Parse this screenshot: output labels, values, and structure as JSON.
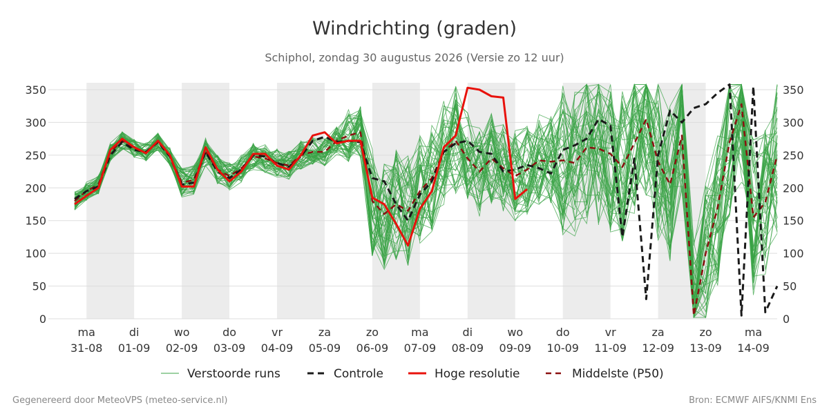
{
  "title": "Windrichting (graden)",
  "subtitle": "Schiphol, zondag 30 augustus 2026 (Versie zo 12 uur)",
  "footer_left": "Gegenereerd door MeteoVPS (meteo-service.nl)",
  "footer_right": "Bron: ECMWF AIFS/KNMI Ens",
  "colors": {
    "ensemble": "#3aa346",
    "control": "#1a1a1a",
    "high_res": "#e8120c",
    "median": "#8b1010",
    "weekend_band": "#ececec",
    "grid": "#dddddd",
    "text": "#333333",
    "muted": "#888888"
  },
  "chart_data": {
    "type": "line",
    "title": "Windrichting (graden)",
    "ylim": [
      0,
      360
    ],
    "yticks": [
      0,
      50,
      100,
      150,
      200,
      250,
      300,
      350
    ],
    "xlim": [
      -0.25,
      14.5
    ],
    "grid": true,
    "legend_position": "bottom",
    "x_ticks": [
      {
        "day": "ma",
        "date": "31-08"
      },
      {
        "day": "di",
        "date": "01-09"
      },
      {
        "day": "wo",
        "date": "02-09"
      },
      {
        "day": "do",
        "date": "03-09"
      },
      {
        "day": "vr",
        "date": "04-09"
      },
      {
        "day": "za",
        "date": "05-09"
      },
      {
        "day": "zo",
        "date": "06-09"
      },
      {
        "day": "ma",
        "date": "07-09"
      },
      {
        "day": "di",
        "date": "08-09"
      },
      {
        "day": "wo",
        "date": "09-09"
      },
      {
        "day": "do",
        "date": "10-09"
      },
      {
        "day": "vr",
        "date": "11-09"
      },
      {
        "day": "za",
        "date": "12-09"
      },
      {
        "day": "zo",
        "date": "13-09"
      },
      {
        "day": "ma",
        "date": "14-09"
      }
    ],
    "shaded_days": [
      0,
      2,
      4,
      6,
      8,
      10,
      12
    ],
    "legend": [
      {
        "label": "Verstoorde runs",
        "style": "ensemble"
      },
      {
        "label": "Controle",
        "style": "control"
      },
      {
        "label": "Hoge resolutie",
        "style": "high_res"
      },
      {
        "label": "Middelste (P50)",
        "style": "median"
      }
    ],
    "ensemble": {
      "name": "Verstoorde runs",
      "members": 50,
      "seed": 7
    },
    "series": [
      {
        "name": "Hoge resolutie",
        "style": "high_res",
        "x": [
          -0.25,
          0,
          0.25,
          0.5,
          0.75,
          1,
          1.25,
          1.5,
          1.75,
          2,
          2.25,
          2.5,
          2.75,
          3,
          3.25,
          3.5,
          3.75,
          4,
          4.25,
          4.5,
          4.75,
          5,
          5.25,
          5.5,
          5.75,
          6,
          6.25,
          6.5,
          6.75,
          7,
          7.25,
          7.5,
          7.75,
          8,
          8.25,
          8.5,
          8.75,
          9,
          9.25
        ],
        "y": [
          175,
          188,
          200,
          258,
          275,
          262,
          253,
          272,
          250,
          202,
          202,
          262,
          228,
          210,
          225,
          252,
          252,
          234,
          228,
          250,
          280,
          285,
          268,
          272,
          272,
          185,
          175,
          145,
          112,
          168,
          195,
          262,
          280,
          353,
          350,
          340,
          338,
          183,
          198
        ]
      },
      {
        "name": "Controle",
        "style": "control",
        "x": [
          -0.25,
          0,
          0.25,
          0.5,
          0.75,
          1,
          1.25,
          1.5,
          1.75,
          2,
          2.25,
          2.5,
          2.75,
          3,
          3.25,
          3.5,
          3.75,
          4,
          4.25,
          4.5,
          4.75,
          5,
          5.25,
          5.5,
          5.75,
          6,
          6.25,
          6.5,
          6.75,
          7,
          7.25,
          7.5,
          7.75,
          8,
          8.25,
          8.5,
          8.75,
          9,
          9.25,
          9.5,
          9.75,
          10,
          10.25,
          10.5,
          10.75,
          11,
          11.25,
          11.5,
          11.75,
          12,
          12.25,
          12.5,
          12.75,
          13,
          13.25,
          13.5,
          13.75,
          14,
          14.25,
          14.5
        ],
        "y": [
          183,
          195,
          202,
          250,
          270,
          258,
          255,
          270,
          248,
          205,
          208,
          255,
          225,
          215,
          228,
          250,
          248,
          238,
          232,
          248,
          272,
          278,
          270,
          272,
          270,
          215,
          210,
          175,
          150,
          190,
          210,
          255,
          268,
          272,
          255,
          252,
          225,
          228,
          235,
          230,
          222,
          258,
          265,
          275,
          305,
          295,
          125,
          245,
          30,
          250,
          318,
          300,
          322,
          328,
          345,
          358,
          5,
          355,
          10,
          50
        ]
      },
      {
        "name": "Middelste (P50)",
        "style": "median",
        "x": [
          -0.25,
          0,
          0.25,
          0.5,
          0.75,
          1,
          1.25,
          1.5,
          1.75,
          2,
          2.25,
          2.5,
          2.75,
          3,
          3.25,
          3.5,
          3.75,
          4,
          4.25,
          4.5,
          4.75,
          5,
          5.25,
          5.5,
          5.75,
          6,
          6.25,
          6.5,
          6.75,
          7,
          7.25,
          7.5,
          7.75,
          8,
          8.25,
          8.5,
          8.75,
          9,
          9.25,
          9.5,
          9.75,
          10,
          10.25,
          10.5,
          10.75,
          11,
          11.25,
          11.5,
          11.75,
          12,
          12.25,
          12.5,
          12.75,
          13,
          13.25,
          13.5,
          13.75,
          14,
          14.25,
          14.5
        ],
        "y": [
          180,
          195,
          205,
          255,
          272,
          260,
          255,
          270,
          248,
          208,
          212,
          255,
          228,
          218,
          230,
          248,
          245,
          238,
          234,
          250,
          255,
          255,
          272,
          280,
          285,
          180,
          160,
          175,
          165,
          195,
          215,
          255,
          272,
          245,
          225,
          245,
          230,
          218,
          228,
          242,
          240,
          242,
          238,
          262,
          260,
          252,
          232,
          268,
          305,
          240,
          205,
          280,
          5,
          100,
          170,
          270,
          328,
          155,
          178,
          250
        ]
      }
    ]
  }
}
